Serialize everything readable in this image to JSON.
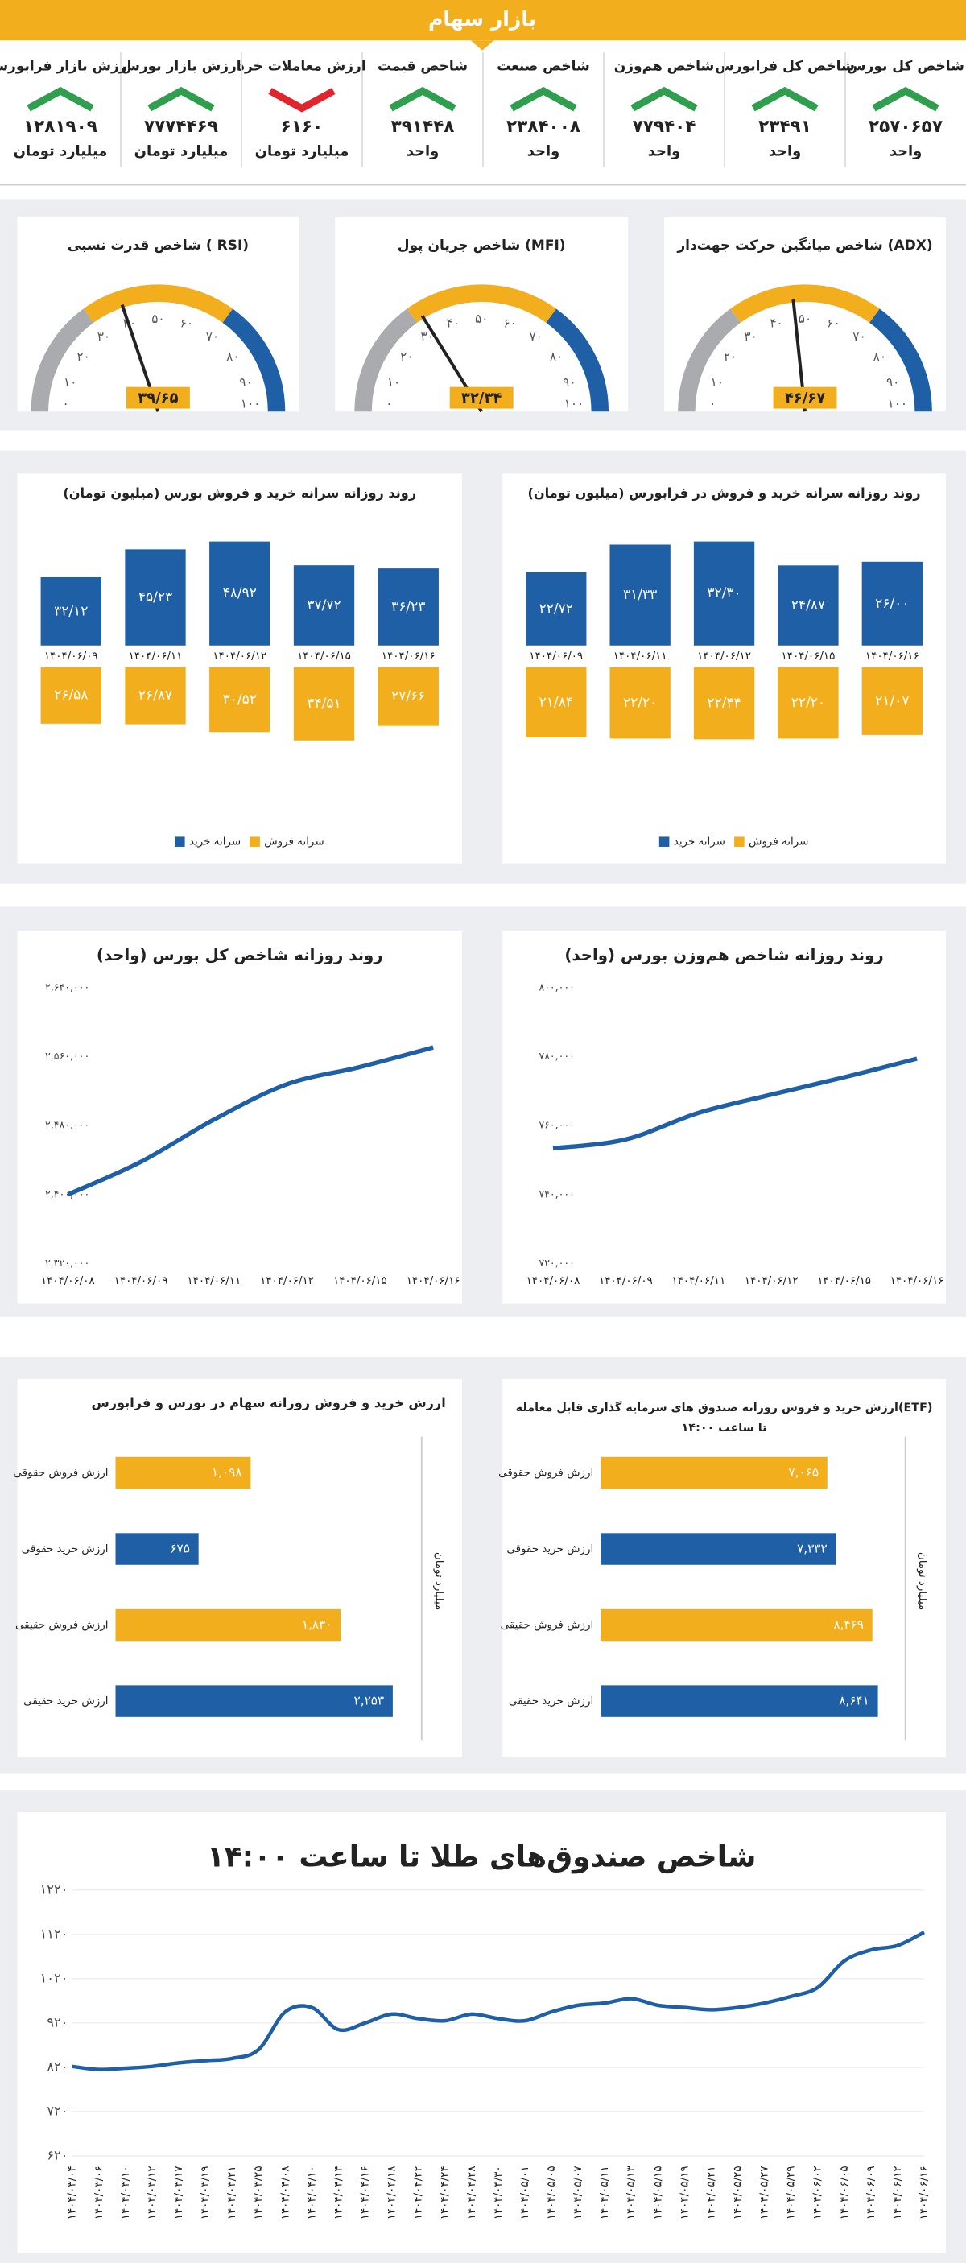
{
  "title": "بازار سهام",
  "trend_colors": {
    "up": "#2f9e4f",
    "down": "#e0262c"
  },
  "tiles": [
    {
      "title": "شاخص کل بورس",
      "value": "۲۵۷۰۶۵۷",
      "unit": "واحد",
      "trend": "up"
    },
    {
      "title": "شاخص کل فرابورس",
      "value": "۲۳۴۹۱",
      "unit": "واحد",
      "trend": "up"
    },
    {
      "title": "شاخص هم‌وزن",
      "value": "۷۷۹۴۰۴",
      "unit": "واحد",
      "trend": "up"
    },
    {
      "title": "شاخص صنعت",
      "value": "۲۳۸۴۰۰۸",
      "unit": "واحد",
      "trend": "up"
    },
    {
      "title": "شاخص قیمت",
      "value": "۳۹۱۴۴۸",
      "unit": "واحد",
      "trend": "up"
    },
    {
      "title": "ارزش معاملات خرد",
      "value": "۶۱۶۰",
      "unit": "میلیارد تومان",
      "trend": "down"
    },
    {
      "title": "ارزش بازار بورس",
      "value": "۷۷۷۴۴۶۹",
      "unit": "میلیارد تومان",
      "trend": "up"
    },
    {
      "title": "ارزش بازار فرابورس",
      "value": "۱۲۸۱۹۰۹",
      "unit": "میلیارد تومان",
      "trend": "up"
    }
  ],
  "chart_data": [
    {
      "type": "gauge",
      "title": "شاخص میانگین حرکت جهت‌دار (ADX)",
      "value": 46.67,
      "value_label": "۴۶/۶۷",
      "lim": [
        0,
        100
      ],
      "ticks": [
        {
          "value": 0,
          "label": "۰"
        },
        {
          "value": 10,
          "label": "۱۰"
        },
        {
          "value": 20,
          "label": "۲۰"
        },
        {
          "value": 30,
          "label": "۳۰"
        },
        {
          "value": 40,
          "label": "۴۰"
        },
        {
          "value": 50,
          "label": "۵۰"
        },
        {
          "value": 60,
          "label": "۶۰"
        },
        {
          "value": 70,
          "label": "۷۰"
        },
        {
          "value": 80,
          "label": "۸۰"
        },
        {
          "value": 90,
          "label": "۹۰"
        },
        {
          "value": 100,
          "label": "۱۰۰"
        }
      ],
      "bands": [
        {
          "from": 0,
          "to": 30,
          "color": "#a9abae"
        },
        {
          "from": 30,
          "to": 70,
          "color": "#f2ae1c"
        },
        {
          "from": 70,
          "to": 100,
          "color": "#1f5fa6"
        }
      ]
    },
    {
      "type": "gauge",
      "title": "شاخص جریان پول (MFI)",
      "value": 32.34,
      "value_label": "۳۲/۳۴",
      "lim": [
        0,
        100
      ],
      "ticks": [
        {
          "value": 0,
          "label": "۰"
        },
        {
          "value": 10,
          "label": "۱۰"
        },
        {
          "value": 20,
          "label": "۲۰"
        },
        {
          "value": 30,
          "label": "۳۰"
        },
        {
          "value": 40,
          "label": "۴۰"
        },
        {
          "value": 50,
          "label": "۵۰"
        },
        {
          "value": 60,
          "label": "۶۰"
        },
        {
          "value": 70,
          "label": "۷۰"
        },
        {
          "value": 80,
          "label": "۸۰"
        },
        {
          "value": 90,
          "label": "۹۰"
        },
        {
          "value": 100,
          "label": "۱۰۰"
        }
      ],
      "bands": [
        {
          "from": 0,
          "to": 30,
          "color": "#a9abae"
        },
        {
          "from": 30,
          "to": 70,
          "color": "#f2ae1c"
        },
        {
          "from": 70,
          "to": 100,
          "color": "#1f5fa6"
        }
      ]
    },
    {
      "type": "gauge",
      "title": "شاخص قدرت نسبی ( RSI)",
      "value": 39.65,
      "value_label": "۳۹/۶۵",
      "lim": [
        0,
        100
      ],
      "ticks": [
        {
          "value": 0,
          "label": "۰"
        },
        {
          "value": 10,
          "label": "۱۰"
        },
        {
          "value": 20,
          "label": "۲۰"
        },
        {
          "value": 30,
          "label": "۳۰"
        },
        {
          "value": 40,
          "label": "۴۰"
        },
        {
          "value": 50,
          "label": "۵۰"
        },
        {
          "value": 60,
          "label": "۶۰"
        },
        {
          "value": 70,
          "label": "۷۰"
        },
        {
          "value": 80,
          "label": "۸۰"
        },
        {
          "value": 90,
          "label": "۹۰"
        },
        {
          "value": 100,
          "label": "۱۰۰"
        }
      ],
      "bands": [
        {
          "from": 0,
          "to": 30,
          "color": "#a9abae"
        },
        {
          "from": 30,
          "to": 70,
          "color": "#f2ae1c"
        },
        {
          "from": 70,
          "to": 100,
          "color": "#1f5fa6"
        }
      ]
    },
    {
      "type": "bar",
      "title": "روند روزانه سرانه خرید و فروش در فرابورس (میلیون تومان)",
      "categories": [
        "۱۴۰۴/۰۶/۰۹",
        "۱۴۰۴/۰۶/۱۱",
        "۱۴۰۴/۰۶/۱۲",
        "۱۴۰۴/۰۶/۱۵",
        "۱۴۰۴/۰۶/۱۶"
      ],
      "series": [
        {
          "name": "سرانه خرید",
          "color": "#1f5fa6",
          "values": [
            22.72,
            31.33,
            32.3,
            24.87,
            26
          ],
          "value_labels": [
            "۲۲/۷۲",
            "۳۱/۳۳",
            "۳۲/۳۰",
            "۲۴/۸۷",
            "۲۶/۰۰"
          ]
        },
        {
          "name": "سرانه فروش",
          "color": "#f2ae1c",
          "values": [
            21.84,
            22.2,
            22.44,
            22.2,
            21.07
          ],
          "value_labels": [
            "۲۱/۸۴",
            "۲۲/۲۰",
            "۲۲/۴۴",
            "۲۲/۲۰",
            "۲۱/۰۷"
          ]
        }
      ]
    },
    {
      "type": "bar",
      "title": "روند روزانه سرانه خرید و فروش بورس (میلیون تومان)",
      "categories": [
        "۱۴۰۴/۰۶/۰۹",
        "۱۴۰۴/۰۶/۱۱",
        "۱۴۰۴/۰۶/۱۲",
        "۱۴۰۴/۰۶/۱۵",
        "۱۴۰۴/۰۶/۱۶"
      ],
      "series": [
        {
          "name": "سرانه خرید",
          "color": "#1f5fa6",
          "values": [
            32.12,
            45.23,
            48.92,
            37.72,
            36.23
          ],
          "value_labels": [
            "۳۲/۱۲",
            "۴۵/۲۳",
            "۴۸/۹۲",
            "۳۷/۷۲",
            "۳۶/۲۳"
          ]
        },
        {
          "name": "سرانه فروش",
          "color": "#f2ae1c",
          "values": [
            26.58,
            26.87,
            30.52,
            34.51,
            27.66
          ],
          "value_labels": [
            "۲۶/۵۸",
            "۲۶/۸۷",
            "۳۰/۵۲",
            "۳۴/۵۱",
            "۲۷/۶۶"
          ]
        }
      ]
    },
    {
      "type": "line",
      "title": "روند روزانه شاخص هم‌وزن بورس (واحد)",
      "categories": [
        "۱۴۰۴/۰۶/۰۸",
        "۱۴۰۴/۰۶/۰۹",
        "۱۴۰۴/۰۶/۱۱",
        "۱۴۰۴/۰۶/۱۲",
        "۱۴۰۴/۰۶/۱۵",
        "۱۴۰۴/۰۶/۱۶"
      ],
      "series": [
        {
          "color": "#1f5fa6",
          "values": [
            753400,
            756000,
            763700,
            769000,
            774000,
            779404
          ]
        }
      ],
      "ylim": [
        720000,
        800000
      ],
      "yticks": [
        {
          "value": 720000,
          "label": "۷۲۰,۰۰۰"
        },
        {
          "value": 740000,
          "label": "۷۴۰,۰۰۰"
        },
        {
          "value": 760000,
          "label": "۷۶۰,۰۰۰"
        },
        {
          "value": 780000,
          "label": "۷۸۰,۰۰۰"
        },
        {
          "value": 800000,
          "label": "۸۰۰,۰۰۰"
        }
      ]
    },
    {
      "type": "line",
      "title": "روند روزانه شاخص کل بورس (واحد)",
      "categories": [
        "۱۴۰۴/۰۶/۰۸",
        "۱۴۰۴/۰۶/۰۹",
        "۱۴۰۴/۰۶/۱۱",
        "۱۴۰۴/۰۶/۱۲",
        "۱۴۰۴/۰۶/۱۵",
        "۱۴۰۴/۰۶/۱۶"
      ],
      "series": [
        {
          "color": "#1f5fa6",
          "values": [
            2400000,
            2438000,
            2487000,
            2528000,
            2548000,
            2570657
          ]
        }
      ],
      "ylim": [
        2320000,
        2640000
      ],
      "yticks": [
        {
          "value": 2320000,
          "label": "۲,۳۲۰,۰۰۰"
        },
        {
          "value": 2400000,
          "label": "۲,۴۰۰,۰۰۰"
        },
        {
          "value": 2480000,
          "label": "۲,۴۸۰,۰۰۰"
        },
        {
          "value": 2560000,
          "label": "۲,۵۶۰,۰۰۰"
        },
        {
          "value": 2640000,
          "label": "۲,۶۴۰,۰۰۰"
        }
      ]
    },
    {
      "type": "hbar",
      "title": "ارزش خرید و فروش روزانه صندوق های سرمایه گذاری قابل معامله(ETF)",
      "subtitle": "تا ساعت ۱۴:۰۰",
      "axis_label": "میلیارد تومان",
      "categories": [
        "ارزش فروش حقوقی",
        "ارزش خرید حقوقی",
        "ارزش فروش حقیقی",
        "ارزش خرید حقیقی"
      ],
      "values": [
        7065,
        7332,
        8469,
        8641
      ],
      "value_labels": [
        "۷,۰۶۵",
        "۷,۳۳۲",
        "۸,۴۶۹",
        "۸,۶۴۱"
      ],
      "colors": [
        "#f2ae1c",
        "#1f5fa6",
        "#f2ae1c",
        "#1f5fa6"
      ]
    },
    {
      "type": "hbar",
      "title": "ارزش خرید و فروش روزانه سهام در بورس و فرابورس",
      "axis_label": "میلیارد تومان",
      "categories": [
        "ارزش فروش حقوقی",
        "ارزش خرید حقوقی",
        "ارزش فروش حقیقی",
        "ارزش خرید حقیقی"
      ],
      "values": [
        1098,
        675,
        1830,
        2253
      ],
      "value_labels": [
        "۱,۰۹۸",
        "۶۷۵",
        "۱,۸۳۰",
        "۲,۲۵۳"
      ],
      "colors": [
        "#f2ae1c",
        "#1f5fa6",
        "#f2ae1c",
        "#1f5fa6"
      ]
    },
    {
      "type": "line",
      "title": "شاخص صندوق‌های طلا تا ساعت ۱۴:۰۰",
      "x_labels_rotated": true,
      "categories": [
        "۱۴۰۴/۰۳/۰۴",
        "۱۴۰۴/۰۳/۰۶",
        "۱۴۰۴/۰۳/۱۰",
        "۱۴۰۴/۰۳/۱۲",
        "۱۴۰۴/۰۳/۱۷",
        "۱۴۰۴/۰۳/۱۹",
        "۱۴۰۴/۰۳/۲۱",
        "۱۴۰۴/۰۳/۲۵",
        "۱۴۰۴/۰۴/۰۸",
        "۱۴۰۴/۰۴/۱۰",
        "۱۴۰۴/۰۴/۱۴",
        "۱۴۰۴/۰۴/۱۶",
        "۱۴۰۴/۰۴/۱۸",
        "۱۴۰۴/۰۴/۲۲",
        "۱۴۰۴/۰۴/۲۴",
        "۱۴۰۴/۰۴/۲۸",
        "۱۴۰۴/۰۴/۳۰",
        "۱۴۰۴/۰۵/۰۱",
        "۱۴۰۴/۰۵/۰۵",
        "۱۴۰۴/۰۵/۰۷",
        "۱۴۰۴/۰۵/۱۱",
        "۱۴۰۴/۰۵/۱۳",
        "۱۴۰۴/۰۵/۱۵",
        "۱۴۰۴/۰۵/۱۹",
        "۱۴۰۴/۰۵/۲۱",
        "۱۴۰۴/۰۵/۲۵",
        "۱۴۰۴/۰۵/۲۷",
        "۱۴۰۴/۰۵/۲۹",
        "۱۴۰۴/۰۶/۰۲",
        "۱۴۰۴/۰۶/۰۵",
        "۱۴۰۴/۰۶/۰۹",
        "۱۴۰۴/۰۶/۱۲",
        "۱۴۰۴/۰۶/۱۶"
      ],
      "series": [
        {
          "color": "#1f5fa6",
          "values": [
            822,
            815,
            818,
            822,
            830,
            835,
            840,
            860,
            945,
            955,
            905,
            920,
            940,
            930,
            925,
            940,
            930,
            925,
            945,
            960,
            965,
            975,
            960,
            955,
            950,
            955,
            965,
            980,
            1000,
            1060,
            1085,
            1095,
            1125
          ]
        }
      ],
      "ylim": [
        620,
        1220
      ],
      "yticks": [
        {
          "value": 620,
          "label": "۶۲۰"
        },
        {
          "value": 720,
          "label": "۷۲۰"
        },
        {
          "value": 820,
          "label": "۸۲۰"
        },
        {
          "value": 920,
          "label": "۹۲۰"
        },
        {
          "value": 1020,
          "label": "۱۰۲۰"
        },
        {
          "value": 1120,
          "label": "۱۱۲۰"
        },
        {
          "value": 1220,
          "label": "۱۲۲۰"
        }
      ]
    }
  ]
}
